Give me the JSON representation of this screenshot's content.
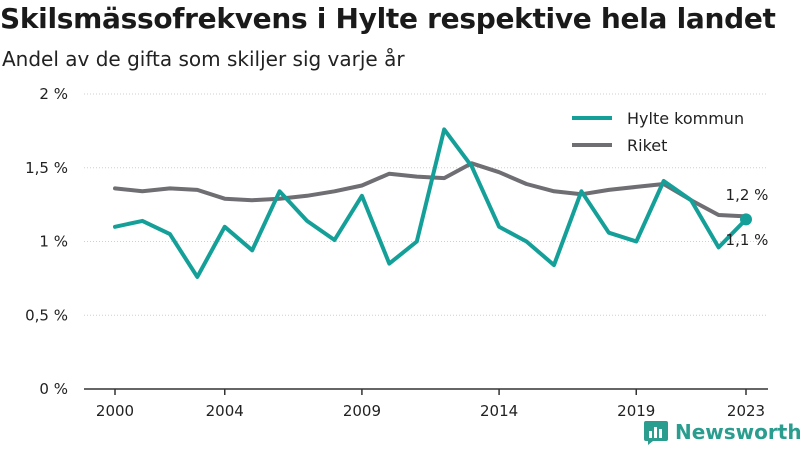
{
  "title": "Skilsmässofrekvens i Hylte respektive hela landet",
  "subtitle": "Andel av de gifta som skiljer sig varje år",
  "brand": {
    "name": "Newsworthy",
    "icon": "bar-chart-logo-icon"
  },
  "colors": {
    "hylte": "#14a098",
    "riket": "#6e6e73",
    "grid": "#cfcfcf",
    "axis": "#333333"
  },
  "chart_data": {
    "type": "line",
    "x": [
      2000,
      2001,
      2002,
      2003,
      2004,
      2005,
      2006,
      2007,
      2008,
      2009,
      2010,
      2011,
      2012,
      2013,
      2014,
      2015,
      2016,
      2017,
      2018,
      2019,
      2020,
      2021,
      2022,
      2023
    ],
    "x_ticks": [
      2000,
      2004,
      2009,
      2014,
      2019,
      2023
    ],
    "x_tick_labels": [
      "2000",
      "2004",
      "2009",
      "2014",
      "2019",
      "2023"
    ],
    "ylim": [
      0,
      2
    ],
    "y_ticks": [
      0,
      0.5,
      1,
      1.5,
      2
    ],
    "y_tick_labels": [
      "0 %",
      "0,5 %",
      "1 %",
      "1,5 %",
      "2 %"
    ],
    "grid": "horizontal",
    "legend_position": "top-right",
    "series": [
      {
        "name": "Hylte kommun",
        "color": "#14a098",
        "values": [
          1.1,
          1.14,
          1.05,
          0.76,
          1.1,
          0.94,
          1.34,
          1.14,
          1.01,
          1.31,
          0.85,
          1.0,
          1.76,
          1.51,
          1.1,
          1.0,
          0.84,
          1.34,
          1.06,
          1.0,
          1.41,
          1.28,
          0.96,
          1.15
        ],
        "end_label": "1,1 %"
      },
      {
        "name": "Riket",
        "color": "#6e6e73",
        "values": [
          1.36,
          1.34,
          1.36,
          1.35,
          1.29,
          1.28,
          1.29,
          1.31,
          1.34,
          1.38,
          1.46,
          1.44,
          1.43,
          1.53,
          1.47,
          1.39,
          1.34,
          1.32,
          1.35,
          1.37,
          1.39,
          1.28,
          1.18,
          1.17
        ],
        "end_label": "1,2 %"
      }
    ]
  }
}
